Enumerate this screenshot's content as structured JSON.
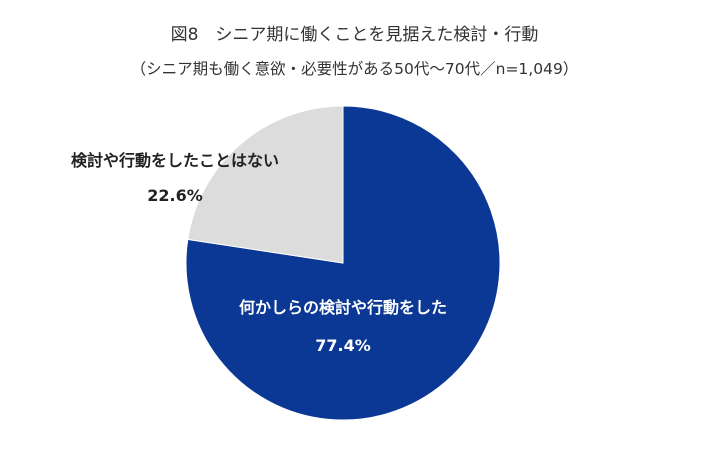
{
  "header": {
    "title": "図8　シニア期に働くことを見据えた検討・行動",
    "subtitle": "（シニア期も働く意欲・必要性がある50代～70代／n=1,049）"
  },
  "colors": {
    "primary": "#0b3894",
    "secondary": "#dcdcdc",
    "label_on_primary": "#ffffff",
    "label_on_secondary": "#222222"
  },
  "chart_data": {
    "type": "pie",
    "title": "図8　シニア期に働くことを見据えた検討・行動",
    "subtitle": "（シニア期も働く意欲・必要性がある50代～70代／n=1,049）",
    "slices": [
      {
        "label": "何かしらの検討や行動をした",
        "value": 77.4,
        "display": "77.4%",
        "color": "#0b3894"
      },
      {
        "label": "検討や行動をしたことはない",
        "value": 22.6,
        "display": "22.6%",
        "color": "#dcdcdc"
      }
    ],
    "start_angle": "12 o'clock",
    "direction": "clockwise"
  }
}
